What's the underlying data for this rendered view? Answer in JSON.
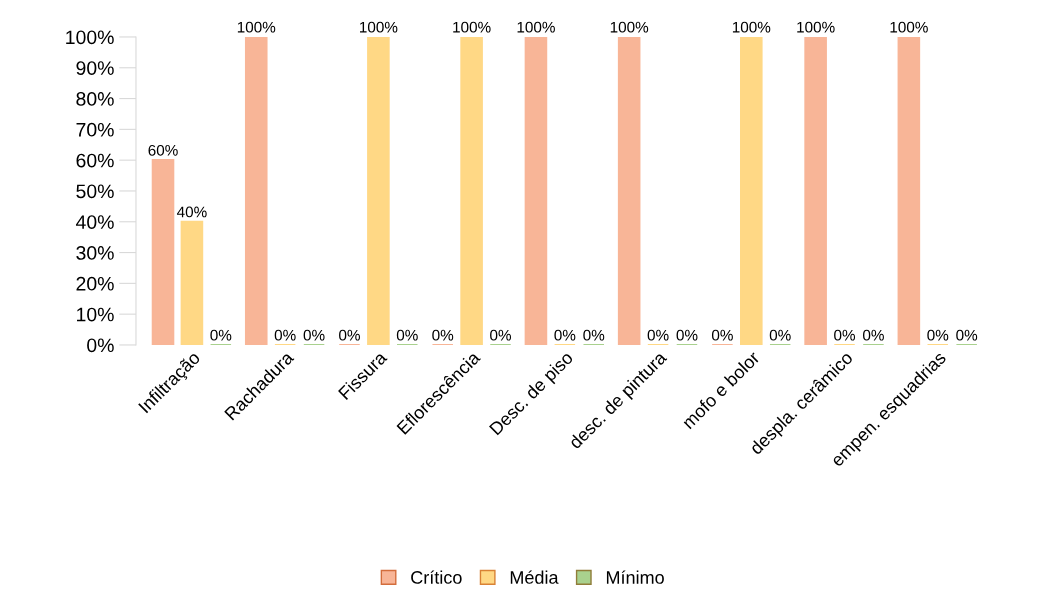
{
  "chart_data": {
    "type": "bar",
    "categories": [
      "Infiltração",
      "Rachadura",
      "Fissura",
      "Eflorescência",
      "Desc. de piso",
      "desc. de pintura",
      "mofo e bolor",
      "despla. cerâmico",
      "empen. esquadrias"
    ],
    "series": [
      {
        "name": "Crítico",
        "color": "#f8b597",
        "values": [
          60,
          100,
          0,
          0,
          100,
          100,
          0,
          100,
          100
        ],
        "value_labels": [
          "60%",
          "100%",
          "0%",
          "0%",
          "100%",
          "100%",
          "0%",
          "100%",
          "100%"
        ]
      },
      {
        "name": "Média",
        "color": "#ffd885",
        "values": [
          40,
          0,
          100,
          100,
          0,
          0,
          100,
          0,
          0
        ],
        "value_labels": [
          "40%",
          "0%",
          "100%",
          "100%",
          "0%",
          "0%",
          "100%",
          "0%",
          "0%"
        ]
      },
      {
        "name": "Mínimo",
        "color": "#a9d18e",
        "values": [
          0,
          0,
          0,
          0,
          0,
          0,
          0,
          0,
          0
        ],
        "value_labels": [
          "0%",
          "0%",
          "0%",
          "0%",
          "0%",
          "0%",
          "0%",
          "0%",
          "0%"
        ]
      }
    ],
    "ylim": [
      0,
      100
    ],
    "yticks": [
      {
        "value": 0,
        "label": "0%"
      },
      {
        "value": 10,
        "label": "10%"
      },
      {
        "value": 20,
        "label": "20%"
      },
      {
        "value": 30,
        "label": "30%"
      },
      {
        "value": 40,
        "label": "40%"
      },
      {
        "value": 50,
        "label": "50%"
      },
      {
        "value": 60,
        "label": "60%"
      },
      {
        "value": 70,
        "label": "70%"
      },
      {
        "value": 80,
        "label": "80%"
      },
      {
        "value": 90,
        "label": "90%"
      },
      {
        "value": 100,
        "label": "100%"
      }
    ],
    "grid": false,
    "legend": "bottom"
  }
}
